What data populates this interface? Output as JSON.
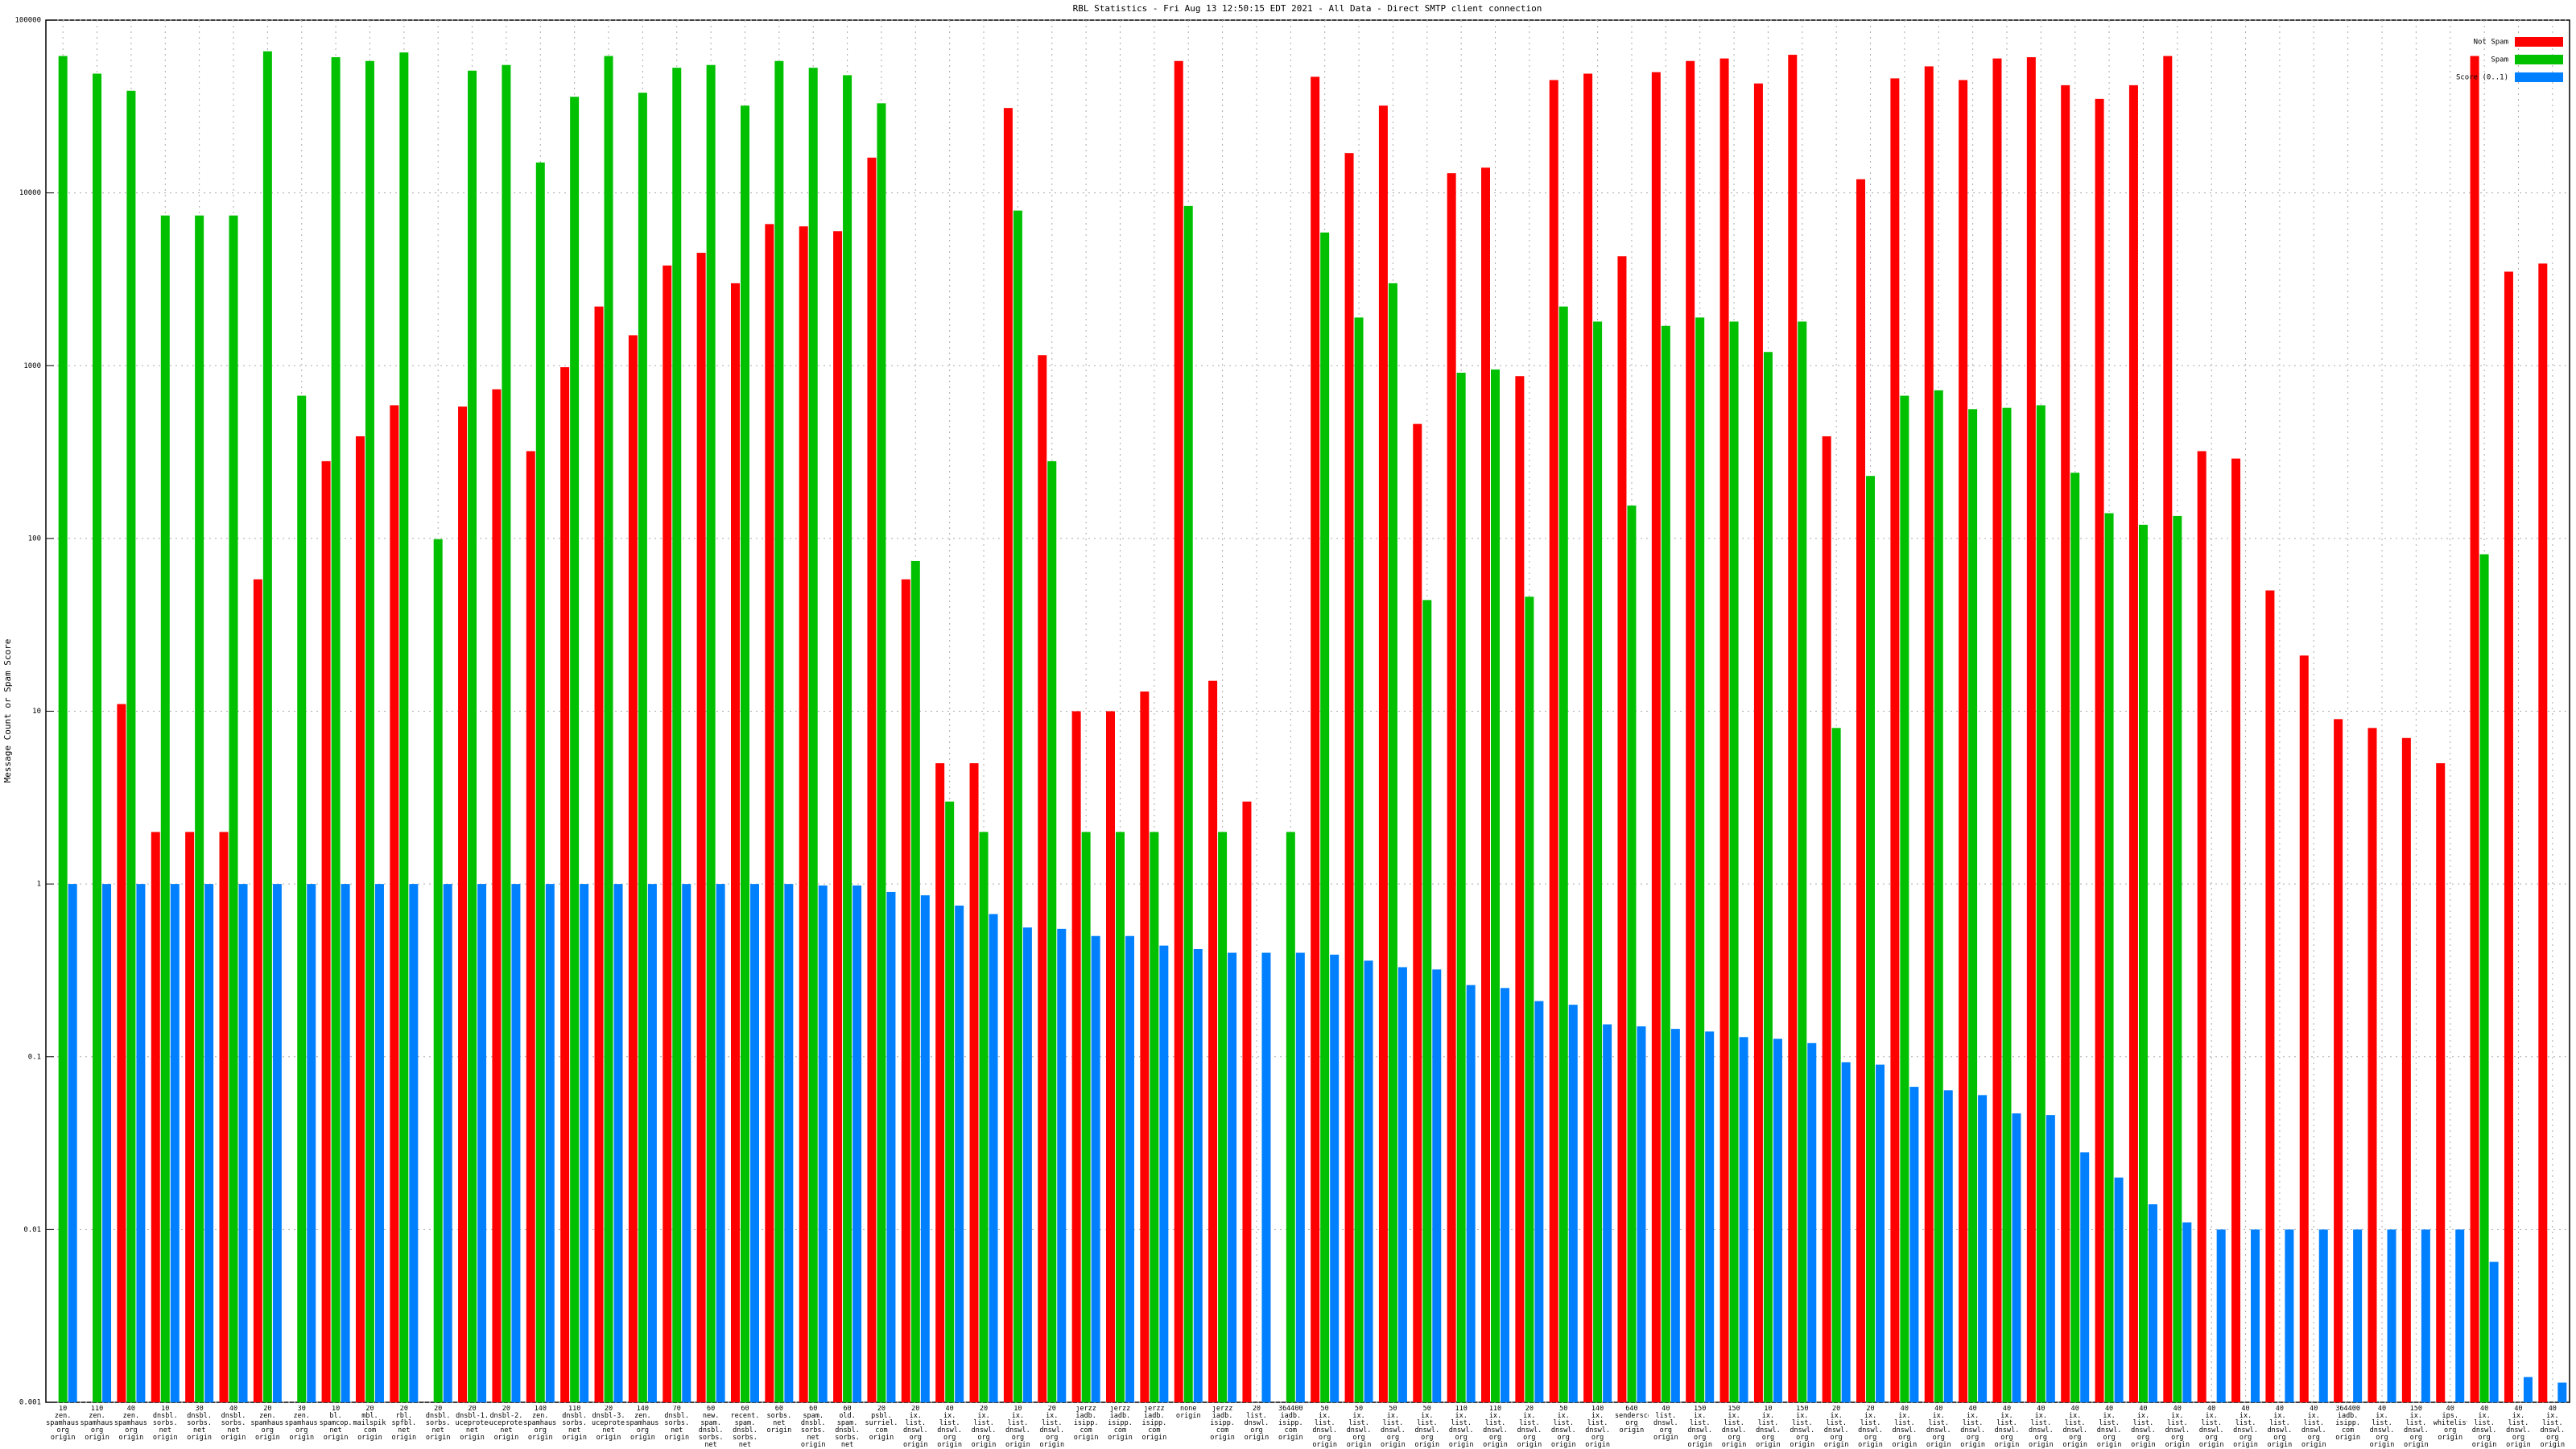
{
  "chart_data": {
    "type": "bar",
    "title": "RBL Statistics - Fri Aug 13 12:50:15 EDT 2021 - All Data - Direct SMTP client connection",
    "ylabel": "Message Count or Spam Score",
    "log": true,
    "grid": true,
    "legend": "top right",
    "ylim": [
      0.001,
      100000
    ],
    "yticks": [
      100000,
      10000,
      1000,
      100,
      10,
      1,
      0.1,
      0.01,
      0.001
    ],
    "categories": [
      "10\nzen.\nspamhaus.\norg\norigin",
      "110\nzen.\nspamhaus.\norg\norigin",
      "40\nzen.\nspamhaus.\norg\norigin",
      "10\ndnsbl.\nsorbs.\nnet\norigin",
      "30\ndnsbl.\nsorbs.\nnet\norigin",
      "40\ndnsbl.\nsorbs.\nnet\norigin",
      "20\nzen.\nspamhaus.\norg\norigin",
      "30\nzen.\nspamhaus.\norg\norigin",
      "10\nbl.\nspamcop.\nnet\norigin",
      "20\nmbl.\nmailspike.\ncom\norigin",
      "20\nrbl.\nspfbl.\nnet\norigin",
      "20\ndnsbl.\nsorbs.\nnet\norigin",
      "20\ndnsbl-1.\nuceprotect.\nnet\norigin",
      "20\ndnsbl-2.\nuceprotect.\nnet\norigin",
      "140\nzen.\nspamhaus.\norg\norigin",
      "110\ndnsbl.\nsorbs.\nnet\norigin",
      "20\ndnsbl-3.\nuceprotect.\nnet\norigin",
      "140\nzen.\nspamhaus.\norg\norigin",
      "70\ndnsbl.\nsorbs.\nnet\norigin",
      "60\nnew.\nspam.\ndnsbl.\nsorbs.\nnet",
      "60\nrecent.\nspam.\ndnsbl.\nsorbs.\nnet",
      "60\nsorbs.\nnet\norigin",
      "60\nspam.\ndnsbl.\nsorbs.\nnet\norigin",
      "60\nold.\nspam.\ndnsbl.\nsorbs.\nnet",
      "20\npsbl.\nsurriel.\ncom\norigin",
      "20\nix.\nlist.\ndnswl.\norg\norigin",
      "40\nix.\nlist.\ndnswl.\norg\norigin",
      "20\nix.\nlist.\ndnswl.\norg\norigin",
      "10\nix.\nlist.\ndnswl.\norg\norigin",
      "20\nix.\nlist.\ndnswl.\norg\norigin",
      "jerzz\niadb.\nisipp.\ncom\norigin",
      "jerzz\niadb.\nisipp.\ncom\norigin",
      "jerzz\niadb.\nisipp.\ncom\norigin",
      "none\norigin",
      "jerzz\niadb.\nisipp.\ncom\norigin",
      "20\nlist.\ndnswl.\norg\norigin",
      "364400\niadb.\nisipp.\ncom\norigin",
      "50\nix.\nlist.\ndnswl.\norg\norigin",
      "50\nix.\nlist.\ndnswl.\norg\norigin",
      "50\nix.\nlist.\ndnswl.\norg\norigin",
      "50\nix.\nlist.\ndnswl.\norg\norigin",
      "110\nix.\nlist.\ndnswl.\norg\norigin",
      "110\nix.\nlist.\ndnswl.\norg\norigin",
      "20\nix.\nlist.\ndnswl.\norg\norigin",
      "50\nix.\nlist.\ndnswl.\norg\norigin",
      "140\nix.\nlist.\ndnswl.\norg\norigin",
      "640\nsenderscore.\norg\norigin",
      "40\nlist.\ndnswl.\norg\norigin",
      "150\nix.\nlist.\ndnswl.\norg\norigin",
      "150\nix.\nlist.\ndnswl.\norg\norigin",
      "10\nix.\nlist.\ndnswl.\norg\norigin",
      "150\nix.\nlist.\ndnswl.\norg\norigin",
      "20\nix.\nlist.\ndnswl.\norg\norigin",
      "20\nix.\nlist.\ndnswl.\norg\norigin",
      "40\nix.\nlist.\ndnswl.\norg\norigin",
      "40\nix.\nlist.\ndnswl.\norg\norigin",
      "40\nix.\nlist.\ndnswl.\norg\norigin",
      "40\nix.\nlist.\ndnswl.\norg\norigin",
      "40\nix.\nlist.\ndnswl.\norg\norigin",
      "40\nix.\nlist.\ndnswl.\norg\norigin",
      "40\nix.\nlist.\ndnswl.\norg\norigin",
      "40\nix.\nlist.\ndnswl.\norg\norigin",
      "40\nix.\nlist.\ndnswl.\norg\norigin",
      "40\nix.\nlist.\ndnswl.\norg\norigin",
      "40\nix.\nlist.\ndnswl.\norg\norigin",
      "40\nix.\nlist.\ndnswl.\norg\norigin",
      "40\nix.\nlist.\ndnswl.\norg\norigin",
      "364400\niadb.\nisipp.\ncom\norigin",
      "40\nix.\nlist.\ndnswl.\norg\norigin",
      "150\nix.\nlist.\ndnswl.\norg\norigin",
      "40\nips.\nwhitelisted.\norg\norigin",
      "40\nix.\nlist.\ndnswl.\norg\norigin",
      "40\nix.\nlist.\ndnswl.\norg\norigin",
      "40\nix.\nlist.\ndnswl.\norg\norigin"
    ],
    "series": [
      {
        "name": "Not Spam",
        "color": "#ff0000",
        "values": [
          null,
          null,
          11,
          2,
          2,
          2,
          58,
          null,
          280,
          390,
          590,
          null,
          580,
          730,
          320,
          980,
          2200,
          1500,
          3800,
          4500,
          3000,
          6600,
          6400,
          6000,
          16000,
          58,
          5,
          5,
          31000,
          1150,
          10,
          10,
          13,
          58000,
          15,
          3,
          null,
          47000,
          17000,
          32000,
          460,
          13000,
          14000,
          870,
          45000,
          49000,
          4300,
          50000,
          58000,
          60000,
          43000,
          63000,
          390,
          12000,
          46000,
          54000,
          45000,
          60000,
          61000,
          42000,
          35000,
          42000,
          62000,
          320,
          290,
          50,
          21,
          9,
          8,
          7,
          5,
          62000,
          3500,
          3900
        ]
      },
      {
        "name": "Spam",
        "color": "#00c000",
        "values": [
          62000,
          49000,
          39000,
          7400,
          7400,
          7400,
          66000,
          670,
          61000,
          58000,
          65000,
          99,
          51000,
          55000,
          15000,
          36000,
          62000,
          38000,
          53000,
          55000,
          32000,
          58000,
          53000,
          48000,
          33000,
          74,
          3,
          2,
          7900,
          280,
          2,
          2,
          2,
          8400,
          2,
          null,
          2,
          5900,
          1900,
          3000,
          44,
          910,
          950,
          46,
          2200,
          1800,
          155,
          1700,
          1900,
          1800,
          1200,
          1800,
          8,
          230,
          670,
          720,
          560,
          570,
          590,
          240,
          140,
          120,
          135,
          null,
          null,
          null,
          null,
          null,
          null,
          null,
          null,
          81,
          null,
          null
        ]
      },
      {
        "name": "Score (0..1)",
        "color": "#0080ff",
        "values": [
          1,
          1,
          1,
          1,
          1,
          1,
          1,
          1,
          1,
          1,
          1,
          1,
          1,
          1,
          1,
          1,
          1,
          1,
          1,
          1,
          1,
          1,
          0.98,
          0.98,
          0.9,
          0.86,
          0.75,
          0.67,
          0.56,
          0.55,
          0.5,
          0.5,
          0.44,
          0.42,
          0.4,
          0.4,
          0.4,
          0.39,
          0.36,
          0.33,
          0.32,
          0.26,
          0.25,
          0.21,
          0.2,
          0.154,
          0.15,
          0.145,
          0.14,
          0.13,
          0.127,
          0.12,
          0.093,
          0.09,
          0.067,
          0.064,
          0.06,
          0.047,
          0.046,
          0.028,
          0.02,
          0.014,
          0.011,
          0.01,
          0.01,
          0.01,
          0.01,
          0.01,
          0.01,
          0.01,
          0.01,
          0.0065,
          0.0014,
          0.0013
        ]
      }
    ]
  }
}
